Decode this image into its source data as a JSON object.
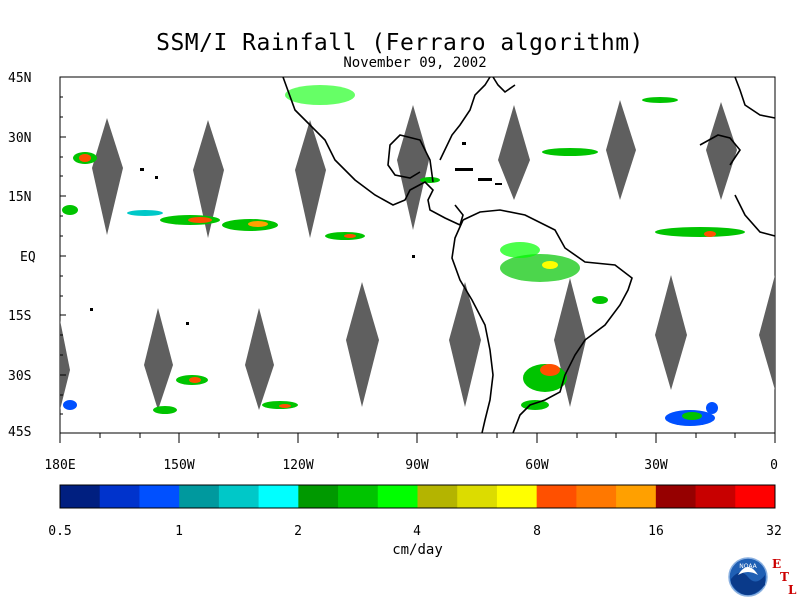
{
  "title": "SSM/I Rainfall (Ferraro algorithm)",
  "date": "November 09, 2002",
  "lat_labels": [
    "45N",
    "30N",
    "15N",
    "EQ",
    "15S",
    "30S",
    "45S"
  ],
  "lon_labels": [
    "180E",
    "150W",
    "120W",
    "90W",
    "60W",
    "30W",
    "0"
  ],
  "colorbar": {
    "units": "cm/day",
    "tick_labels": [
      "0.5",
      "1",
      "2",
      "4",
      "8",
      "16",
      "32"
    ],
    "colors": [
      "#001f80",
      "#0033cc",
      "#0050ff",
      "#00999e",
      "#00c8c8",
      "#00ffff",
      "#009900",
      "#00c400",
      "#00ff00",
      "#b4b400",
      "#dcdc00",
      "#ffff00",
      "#ff5000",
      "#ff7800",
      "#ffa000",
      "#960000",
      "#c80000",
      "#ff0000"
    ]
  },
  "logo": {
    "agency_text": "NOAA",
    "lab_letters": [
      "E",
      "T",
      "L"
    ]
  }
}
